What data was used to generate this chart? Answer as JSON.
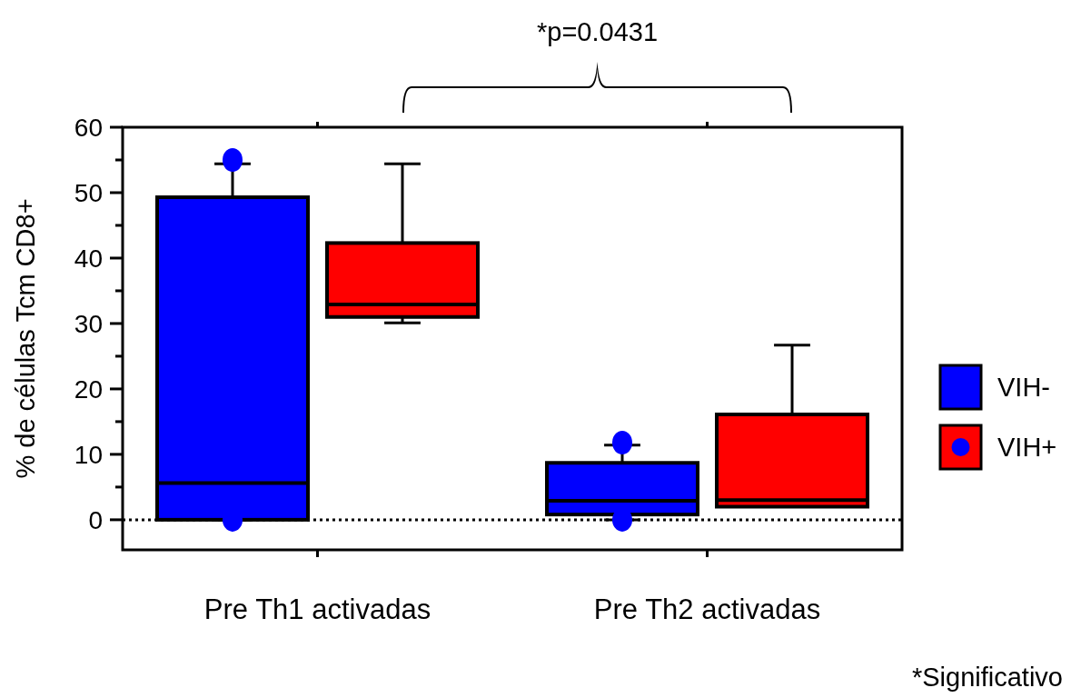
{
  "chart_data": {
    "type": "box",
    "ylabel": "% de células Tcm CD8+",
    "categories": [
      "Pre Th1 activadas",
      "Pre Th2 activadas"
    ],
    "series": [
      {
        "name": "VIH-",
        "color": "#0000ff",
        "boxes": [
          {
            "low": 0,
            "q1": 0,
            "median": 5.6,
            "q3": 49.3,
            "high": 54.4,
            "outliers": [
              55,
              0
            ]
          },
          {
            "low": 0,
            "q1": 0.8,
            "median": 2.9,
            "q3": 8.7,
            "high": 11.4,
            "outliers": [
              11.8,
              0
            ]
          }
        ]
      },
      {
        "name": "VIH+",
        "color": "#ff0000",
        "boxes": [
          {
            "low": 30.1,
            "q1": 31,
            "median": 32.9,
            "q3": 42.3,
            "high": 54.4
          },
          {
            "low": 2,
            "q1": 2,
            "median": 3,
            "q3": 16.1,
            "high": 26.7
          }
        ]
      }
    ],
    "ylim": [
      -4.6,
      60
    ],
    "yticks": [
      0,
      {
        "value": 5,
        "label": null
      },
      10,
      {
        "value": 15,
        "label": null
      },
      20,
      {
        "value": 25,
        "label": null
      },
      30,
      {
        "value": 35,
        "label": null
      },
      40,
      {
        "value": 45,
        "label": null
      },
      50,
      {
        "value": 55,
        "label": null
      },
      60
    ],
    "ref_lines": [
      {
        "axis": "y",
        "value": 0,
        "line_style": "dotted"
      }
    ],
    "legend": "right",
    "annotations": [
      "*p=0.0431",
      "*Significativo"
    ]
  }
}
